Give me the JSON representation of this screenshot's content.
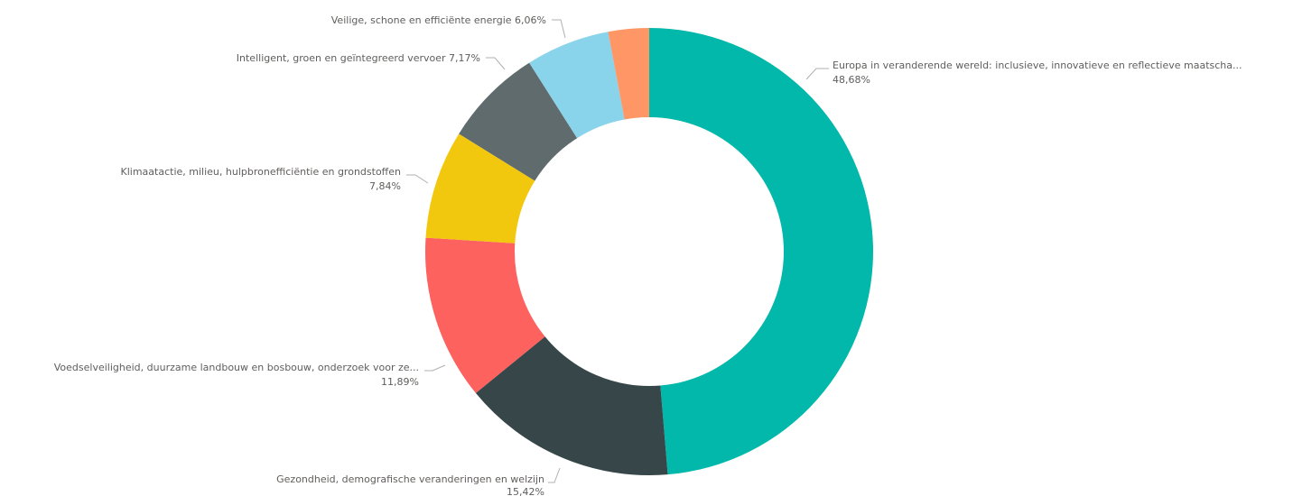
{
  "chart_data": {
    "type": "pie",
    "donut": true,
    "title": "",
    "legend": "none",
    "slices": [
      {
        "label": "Europa in veranderende wereld: inclusieve, innovatieve en reflectieve maatscha...",
        "value_label": "48,68%",
        "value": 48.68,
        "color": "#01b8aa"
      },
      {
        "label": "Gezondheid, demografische veranderingen en welzijn",
        "value_label": "15,42%",
        "value": 15.42,
        "color": "#374649"
      },
      {
        "label": "Voedselveiligheid, duurzame landbouw en bosbouw, onderzoek voor ze...",
        "value_label": "11,89%",
        "value": 11.89,
        "color": "#fd625e"
      },
      {
        "label": "Klimaatactie, milieu, hulpbronefficiëntie en grondstoffen",
        "value_label": "7,84%",
        "value": 7.84,
        "color": "#f2c80f"
      },
      {
        "label": "Intelligent, groen en geïntegreerd vervoer",
        "value_label": "7,17%",
        "value": 7.17,
        "color": "#5f6b6d"
      },
      {
        "label": "Veilige, schone en efficiënte energie",
        "value_label": "6,06%",
        "value": 6.06,
        "color": "#8ad4eb"
      },
      {
        "label": "",
        "value_label": "",
        "value": 2.94,
        "color": "#fe9666"
      }
    ]
  }
}
